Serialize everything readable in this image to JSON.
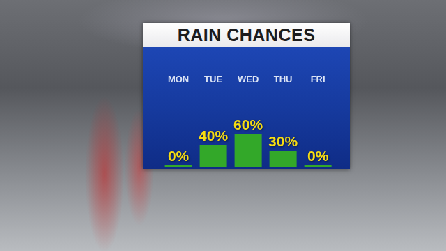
{
  "chart_data": {
    "type": "bar",
    "title": "RAIN CHANCES",
    "categories": [
      "MON",
      "TUE",
      "WED",
      "THU",
      "FRI"
    ],
    "values": [
      0,
      40,
      60,
      30,
      0
    ],
    "value_labels": [
      "0%",
      "40%",
      "60%",
      "30%",
      "0%"
    ],
    "color": "#33a829",
    "ylim": [
      0,
      100
    ],
    "grid": false,
    "data_labels": true,
    "tick_labels": "x"
  }
}
